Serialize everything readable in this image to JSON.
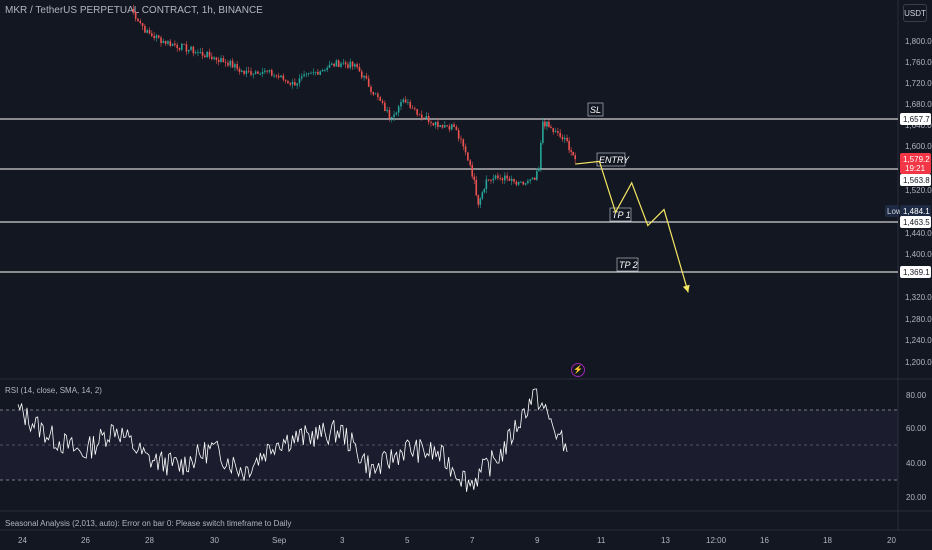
{
  "header": {
    "symbol_title": "MKR / TetherUS PERPETUAL CONTRACT, 1h, BINANCE",
    "currency_button": "USDT"
  },
  "price_axis": {
    "labels": [
      "1,800.0",
      "1,760.0",
      "1,720.0",
      "1,680.0",
      "1,640.0",
      "1,600.0",
      "1,520.0",
      "1,440.0",
      "1,400.0",
      "1,320.0",
      "1,280.0",
      "1,240.0",
      "1,200.0"
    ]
  },
  "price_tags": {
    "sl": "1,657.7",
    "last_price": "1,579.2",
    "countdown": "19:21",
    "entry": "1,563.8",
    "low_label": "Low",
    "low_value": "1,484.1",
    "tp1": "1,463.5",
    "tp2": "1,369.1"
  },
  "chart_labels": {
    "sl": "SL",
    "entry": "ENTRY",
    "tp1": "TP 1",
    "tp2": "TP 2"
  },
  "time_axis": {
    "labels": [
      "24",
      "26",
      "28",
      "30",
      "Sep",
      "3",
      "5",
      "7",
      "9",
      "11",
      "13",
      "12:00",
      "16",
      "18",
      "20"
    ]
  },
  "rsi": {
    "label": "RSI (14, close, SMA, 14, 2)",
    "axis_labels": [
      "80.00",
      "60.00",
      "40.00",
      "20.00"
    ]
  },
  "seasonal": {
    "message": "Seasonal Analysis (2,013, auto): Error on bar 0: Please switch timeframe to Daily"
  },
  "icons": {
    "bolt": "⚡"
  },
  "colors": {
    "background": "#131722",
    "up": "#26a69a",
    "down": "#ef5350",
    "level_line": "#ffffff",
    "projection": "#f5e663",
    "last_price_tag": "#f23645",
    "low_tag": "#1e2a44",
    "rsi_line": "#ffffff",
    "rsi_band": "#7e57c2"
  },
  "chart_data": {
    "type": "line",
    "title": "MKR / TetherUS PERPETUAL CONTRACT, 1h, BINANCE",
    "xlabel": "",
    "ylabel": "",
    "ylim": [
      1190,
      1870
    ],
    "levels": [
      {
        "name": "SL",
        "value": 1657.7
      },
      {
        "name": "ENTRY",
        "value": 1563.8
      },
      {
        "name": "TP 1",
        "value": 1463.5
      },
      {
        "name": "TP 2",
        "value": 1369.1
      }
    ],
    "price_path": [
      {
        "x": "Aug 27 12:00",
        "y": 1860
      },
      {
        "x": "Aug 28",
        "y": 1815
      },
      {
        "x": "Aug 28 12:00",
        "y": 1800
      },
      {
        "x": "Aug 29",
        "y": 1790
      },
      {
        "x": "Aug 29 12:00",
        "y": 1780
      },
      {
        "x": "Aug 30",
        "y": 1770
      },
      {
        "x": "Aug 30 12:00",
        "y": 1760
      },
      {
        "x": "Aug 31",
        "y": 1740
      },
      {
        "x": "Aug 31 12:00",
        "y": 1745
      },
      {
        "x": "Sep 1",
        "y": 1735
      },
      {
        "x": "Sep 1 12:00",
        "y": 1720
      },
      {
        "x": "Sep 2",
        "y": 1735
      },
      {
        "x": "Sep 2 12:00",
        "y": 1750
      },
      {
        "x": "Sep 3",
        "y": 1760
      },
      {
        "x": "Sep 3 12:00",
        "y": 1750
      },
      {
        "x": "Sep 4",
        "y": 1705
      },
      {
        "x": "Sep 4 12:00",
        "y": 1660
      },
      {
        "x": "Sep 5",
        "y": 1690
      },
      {
        "x": "Sep 5 12:00",
        "y": 1660
      },
      {
        "x": "Sep 6",
        "y": 1645
      },
      {
        "x": "Sep 6 12:00",
        "y": 1640
      },
      {
        "x": "Sep 7",
        "y": 1570
      },
      {
        "x": "Sep 7 06:00",
        "y": 1500
      },
      {
        "x": "Sep 7 12:00",
        "y": 1540
      },
      {
        "x": "Sep 8",
        "y": 1545
      },
      {
        "x": "Sep 8 12:00",
        "y": 1530
      },
      {
        "x": "Sep 9",
        "y": 1540
      },
      {
        "x": "Sep 9 03:00",
        "y": 1560
      },
      {
        "x": "Sep 9 06:00",
        "y": 1650
      },
      {
        "x": "Sep 9 12:00",
        "y": 1635
      },
      {
        "x": "Sep 10",
        "y": 1610
      },
      {
        "x": "Sep 10 06:00",
        "y": 1579.2
      }
    ],
    "projection_path": [
      {
        "x": "Sep 10 06:00",
        "y": 1570
      },
      {
        "x": "Sep 11",
        "y": 1575
      },
      {
        "x": "Sep 11 12:00",
        "y": 1480
      },
      {
        "x": "Sep 12",
        "y": 1535
      },
      {
        "x": "Sep 12 12:00",
        "y": 1455
      },
      {
        "x": "Sep 13",
        "y": 1485
      },
      {
        "x": "Sep 13 18:00",
        "y": 1330
      }
    ],
    "rsi": {
      "ylim": [
        15,
        85
      ],
      "bands": [
        70,
        50,
        30
      ],
      "series": [
        {
          "x": "Aug 24",
          "y": 70
        },
        {
          "x": "Aug 25",
          "y": 55
        },
        {
          "x": "Aug 26",
          "y": 45
        },
        {
          "x": "Aug 27",
          "y": 60
        },
        {
          "x": "Aug 28",
          "y": 42
        },
        {
          "x": "Aug 29",
          "y": 38
        },
        {
          "x": "Aug 30",
          "y": 48
        },
        {
          "x": "Aug 31",
          "y": 35
        },
        {
          "x": "Sep 1",
          "y": 52
        },
        {
          "x": "Sep 2",
          "y": 55
        },
        {
          "x": "Sep 3",
          "y": 58
        },
        {
          "x": "Sep 4",
          "y": 35
        },
        {
          "x": "Sep 5",
          "y": 48
        },
        {
          "x": "Sep 6",
          "y": 45
        },
        {
          "x": "Sep 7",
          "y": 28
        },
        {
          "x": "Sep 8",
          "y": 46
        },
        {
          "x": "Sep 9",
          "y": 80
        },
        {
          "x": "Sep 10",
          "y": 46
        }
      ]
    }
  }
}
